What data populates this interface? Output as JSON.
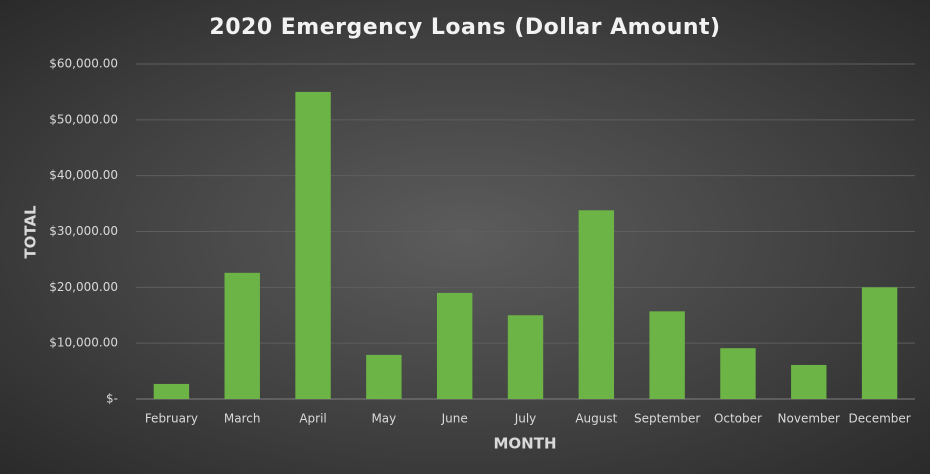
{
  "chart_data": {
    "type": "bar",
    "title": "2020 Emergency Loans (Dollar Amount)",
    "x_label": "MONTH",
    "y_label": "TOTAL",
    "categories": [
      "February",
      "March",
      "April",
      "May",
      "June",
      "July",
      "August",
      "September",
      "October",
      "November",
      "December"
    ],
    "values": [
      2700,
      22600,
      55000,
      7900,
      19000,
      15000,
      33800,
      15700,
      9100,
      6100,
      20000
    ],
    "color": "#6cb446",
    "ylim": [
      0,
      60000
    ],
    "yticks": [
      {
        "value": 0,
        "label": "$-"
      },
      {
        "value": 10000,
        "label": "$10,000.00"
      },
      {
        "value": 20000,
        "label": "$20,000.00"
      },
      {
        "value": 30000,
        "label": "$30,000.00"
      },
      {
        "value": 40000,
        "label": "$40,000.00"
      },
      {
        "value": 50000,
        "label": "$50,000.00"
      },
      {
        "value": 60000,
        "label": "$60,000.00"
      }
    ],
    "grid": true
  }
}
